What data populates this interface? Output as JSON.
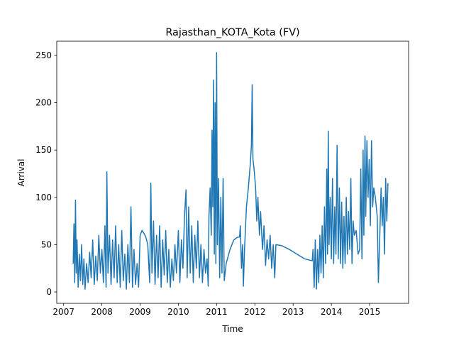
{
  "chart_data": {
    "type": "line",
    "title": "Rajasthan_KOTA_Kota (FV)",
    "x_label": "Time",
    "y_label": "Arrival",
    "xlim": [
      2006.82,
      2016.02
    ],
    "ylim": [
      -12,
      265
    ],
    "xticks": [
      2007,
      2008,
      2009,
      2010,
      2011,
      2012,
      2013,
      2014,
      2015
    ],
    "yticks": [
      0,
      50,
      100,
      150,
      200,
      250
    ],
    "grid": false,
    "series": [
      {
        "color": "#1f77b4",
        "x": [
          2007.25,
          2007.27,
          2007.29,
          2007.31,
          2007.33,
          2007.35,
          2007.38,
          2007.41,
          2007.44,
          2007.47,
          2007.5,
          2007.53,
          2007.56,
          2007.6,
          2007.64,
          2007.68,
          2007.72,
          2007.76,
          2007.8,
          2007.84,
          2007.88,
          2007.92,
          2007.96,
          2008.0,
          2008.04,
          2008.08,
          2008.11,
          2008.13,
          2008.16,
          2008.2,
          2008.24,
          2008.28,
          2008.32,
          2008.36,
          2008.4,
          2008.44,
          2008.48,
          2008.52,
          2008.56,
          2008.6,
          2008.64,
          2008.68,
          2008.72,
          2008.76,
          2008.8,
          2008.84,
          2008.88,
          2008.92,
          2008.96,
          2009.0,
          2009.05,
          2009.1,
          2009.15,
          2009.2,
          2009.25,
          2009.28,
          2009.31,
          2009.35,
          2009.39,
          2009.43,
          2009.47,
          2009.51,
          2009.55,
          2009.59,
          2009.63,
          2009.67,
          2009.71,
          2009.75,
          2009.79,
          2009.83,
          2009.87,
          2009.91,
          2009.95,
          2010.0,
          2010.04,
          2010.08,
          2010.12,
          2010.16,
          2010.2,
          2010.23,
          2010.27,
          2010.31,
          2010.35,
          2010.39,
          2010.43,
          2010.47,
          2010.51,
          2010.55,
          2010.59,
          2010.63,
          2010.67,
          2010.71,
          2010.75,
          2010.78,
          2010.8,
          2010.83,
          2010.86,
          2010.88,
          2010.9,
          2010.92,
          2010.94,
          2010.96,
          2010.98,
          2011.0,
          2011.02,
          2011.05,
          2011.08,
          2011.11,
          2011.14,
          2011.17,
          2011.2,
          2011.25,
          2011.35,
          2011.45,
          2011.55,
          2011.6,
          2011.62,
          2011.65,
          2011.68,
          2011.7,
          2011.73,
          2011.78,
          2011.83,
          2011.88,
          2011.91,
          2011.93,
          2011.95,
          2011.98,
          2012.02,
          2012.05,
          2012.08,
          2012.12,
          2012.15,
          2012.2,
          2012.24,
          2012.28,
          2012.32,
          2012.36,
          2012.4,
          2012.44,
          2012.48,
          2012.52,
          2012.55,
          2012.7,
          2012.9,
          2013.1,
          2013.3,
          2013.5,
          2013.52,
          2013.55,
          2013.58,
          2013.61,
          2013.64,
          2013.67,
          2013.7,
          2013.73,
          2013.76,
          2013.79,
          2013.82,
          2013.85,
          2013.88,
          2013.9,
          2013.92,
          2013.94,
          2013.97,
          2014.0,
          2014.03,
          2014.06,
          2014.09,
          2014.12,
          2014.15,
          2014.18,
          2014.21,
          2014.24,
          2014.27,
          2014.3,
          2014.33,
          2014.36,
          2014.39,
          2014.42,
          2014.45,
          2014.48,
          2014.51,
          2014.54,
          2014.57,
          2014.6,
          2014.65,
          2014.7,
          2014.74,
          2014.77,
          2014.8,
          2014.83,
          2014.85,
          2014.88,
          2014.9,
          2014.93,
          2014.96,
          2014.99,
          2015.02,
          2015.05,
          2015.08,
          2015.11,
          2015.15,
          2015.2,
          2015.23,
          2015.26,
          2015.3,
          2015.33,
          2015.36,
          2015.39,
          2015.42,
          2015.45,
          2015.48
        ],
        "values": [
          30,
          72,
          10,
          97,
          20,
          55,
          5,
          40,
          12,
          50,
          8,
          35,
          3,
          30,
          10,
          42,
          15,
          55,
          8,
          38,
          12,
          60,
          20,
          45,
          10,
          70,
          5,
          127,
          20,
          60,
          8,
          55,
          15,
          70,
          10,
          50,
          5,
          65,
          12,
          40,
          3,
          50,
          10,
          90,
          5,
          45,
          8,
          30,
          5,
          60,
          65,
          62,
          58,
          50,
          10,
          115,
          20,
          75,
          8,
          60,
          15,
          70,
          5,
          55,
          18,
          65,
          10,
          45,
          5,
          35,
          12,
          50,
          20,
          65,
          10,
          55,
          25,
          80,
          108,
          15,
          90,
          20,
          70,
          10,
          60,
          25,
          75,
          15,
          50,
          10,
          45,
          20,
          35,
          6,
          80,
          110,
          60,
          171,
          90,
          224,
          40,
          200,
          30,
          253,
          50,
          120,
          15,
          100,
          20,
          120,
          12,
          30,
          45,
          55,
          58,
          58,
          70,
          25,
          50,
          6,
          45,
          90,
          110,
          135,
          155,
          219,
          140,
          130,
          110,
          75,
          100,
          60,
          85,
          45,
          70,
          28,
          55,
          35,
          60,
          25,
          50,
          15,
          50,
          49,
          45,
          40,
          35,
          33,
          45,
          5,
          55,
          3,
          45,
          10,
          60,
          20,
          70,
          15,
          90,
          30,
          130,
          40,
          170,
          50,
          100,
          35,
          120,
          30,
          90,
          40,
          155,
          35,
          110,
          30,
          95,
          25,
          80,
          30,
          100,
          40,
          85,
          45,
          120,
          30,
          75,
          60,
          65,
          40,
          45,
          130,
          35,
          150,
          60,
          165,
          80,
          160,
          100,
          140,
          70,
          160,
          90,
          110,
          100,
          80,
          10,
          50,
          110,
          70,
          100,
          40,
          120,
          75,
          115
        ]
      }
    ]
  }
}
